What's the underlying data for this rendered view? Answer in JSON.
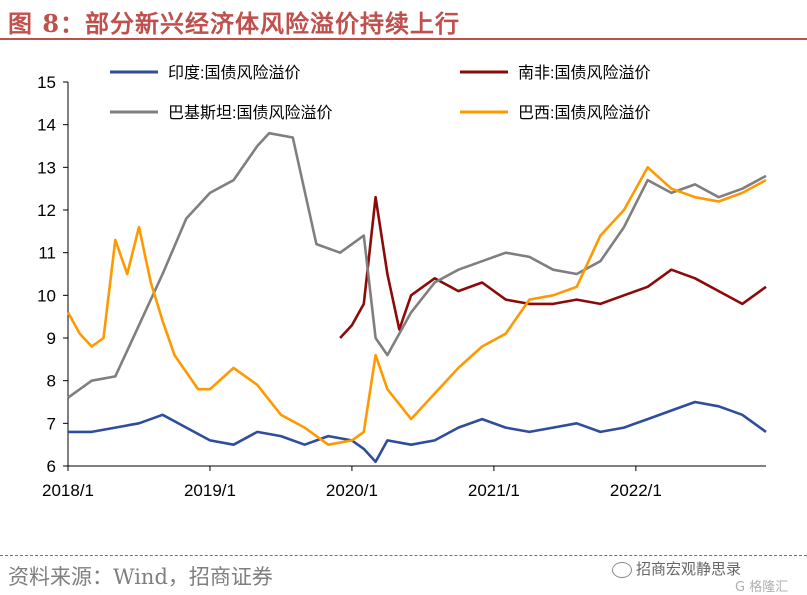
{
  "header": {
    "title": "图 8：部分新兴经济体风险溢价持续上行"
  },
  "footer": {
    "source": "资料来源：Wind，招商证券",
    "brand": "招商宏观静思录",
    "watermark": "G 格隆汇"
  },
  "colors": {
    "india": "#2e4d9b",
    "south_africa": "#8b0a0a",
    "turkey": "#7f7f7f",
    "brazil": "#ff9900",
    "accent": "#c0504d"
  },
  "chart_data": {
    "type": "line",
    "title": "",
    "xlabel": "",
    "ylabel": "",
    "ylim": [
      6,
      15
    ],
    "yticks": [
      6,
      7,
      8,
      9,
      10,
      11,
      12,
      13,
      14,
      15
    ],
    "xlim": [
      "2018-01",
      "2022-12"
    ],
    "xticks": [
      "2018/1",
      "2019/1",
      "2020/1",
      "2021/1",
      "2022/1"
    ],
    "legend_position": "top",
    "grid": false,
    "series": [
      {
        "key": "india",
        "name": "印度:国债风险溢价",
        "x": [
          "2018-01",
          "2018-03",
          "2018-05",
          "2018-07",
          "2018-09",
          "2018-11",
          "2019-01",
          "2019-03",
          "2019-05",
          "2019-07",
          "2019-09",
          "2019-11",
          "2020-01",
          "2020-02",
          "2020-03",
          "2020-04",
          "2020-06",
          "2020-08",
          "2020-10",
          "2020-12",
          "2021-02",
          "2021-04",
          "2021-06",
          "2021-08",
          "2021-10",
          "2021-12",
          "2022-02",
          "2022-04",
          "2022-06",
          "2022-08",
          "2022-10",
          "2022-12"
        ],
        "values": [
          6.8,
          6.8,
          6.9,
          7.0,
          7.2,
          6.9,
          6.6,
          6.5,
          6.8,
          6.7,
          6.5,
          6.7,
          6.6,
          6.4,
          6.1,
          6.6,
          6.5,
          6.6,
          6.9,
          7.1,
          6.9,
          6.8,
          6.9,
          7.0,
          6.8,
          6.9,
          7.1,
          7.3,
          7.5,
          7.4,
          7.2,
          6.8
        ]
      },
      {
        "key": "south_africa",
        "name": "南非:国债风险溢价",
        "x": [
          "2019-12",
          "2020-01",
          "2020-02",
          "2020-03",
          "2020-04",
          "2020-05",
          "2020-06",
          "2020-08",
          "2020-10",
          "2020-12",
          "2021-02",
          "2021-04",
          "2021-06",
          "2021-08",
          "2021-10",
          "2021-12",
          "2022-02",
          "2022-04",
          "2022-06",
          "2022-08",
          "2022-10",
          "2022-12"
        ],
        "values": [
          9.0,
          9.3,
          9.8,
          12.3,
          10.5,
          9.2,
          10.0,
          10.4,
          10.1,
          10.3,
          9.9,
          9.8,
          9.8,
          9.9,
          9.8,
          10.0,
          10.2,
          10.6,
          10.4,
          10.1,
          9.8,
          10.2
        ]
      },
      {
        "key": "turkey",
        "name": "巴基斯坦:国债风险溢价",
        "x": [
          "2018-01",
          "2018-03",
          "2018-05",
          "2018-07",
          "2018-09",
          "2018-11",
          "2019-01",
          "2019-03",
          "2019-05",
          "2019-06",
          "2019-08",
          "2019-10",
          "2019-12",
          "2020-02",
          "2020-03",
          "2020-04",
          "2020-06",
          "2020-08",
          "2020-10",
          "2020-12",
          "2021-02",
          "2021-04",
          "2021-06",
          "2021-08",
          "2021-10",
          "2021-12",
          "2022-02",
          "2022-04",
          "2022-06",
          "2022-08",
          "2022-10",
          "2022-12"
        ],
        "values": [
          7.6,
          8.0,
          8.1,
          9.3,
          10.5,
          11.8,
          12.4,
          12.7,
          13.5,
          13.8,
          13.7,
          11.2,
          11.0,
          11.4,
          9.0,
          8.6,
          9.6,
          10.3,
          10.6,
          10.8,
          11.0,
          10.9,
          10.6,
          10.5,
          10.8,
          11.6,
          12.7,
          12.4,
          12.6,
          12.3,
          12.5,
          12.8
        ]
      },
      {
        "key": "brazil",
        "name": "巴西:国债风险溢价",
        "x": [
          "2018-01",
          "2018-02",
          "2018-03",
          "2018-04",
          "2018-05",
          "2018-06",
          "2018-07",
          "2018-08",
          "2018-09",
          "2018-10",
          "2018-11",
          "2018-12",
          "2019-01",
          "2019-03",
          "2019-05",
          "2019-07",
          "2019-09",
          "2019-11",
          "2020-01",
          "2020-02",
          "2020-03",
          "2020-04",
          "2020-06",
          "2020-08",
          "2020-10",
          "2020-12",
          "2021-02",
          "2021-04",
          "2021-06",
          "2021-08",
          "2021-10",
          "2021-12",
          "2022-02",
          "2022-04",
          "2022-06",
          "2022-08",
          "2022-10",
          "2022-12"
        ],
        "values": [
          9.6,
          9.1,
          8.8,
          9.0,
          11.3,
          10.5,
          11.6,
          10.3,
          9.4,
          8.6,
          8.2,
          7.8,
          7.8,
          8.3,
          7.9,
          7.2,
          6.9,
          6.5,
          6.6,
          6.8,
          8.6,
          7.8,
          7.1,
          7.7,
          8.3,
          8.8,
          9.1,
          9.9,
          10.0,
          10.2,
          11.4,
          12.0,
          13.0,
          12.5,
          12.3,
          12.2,
          12.4,
          12.7
        ]
      }
    ]
  }
}
